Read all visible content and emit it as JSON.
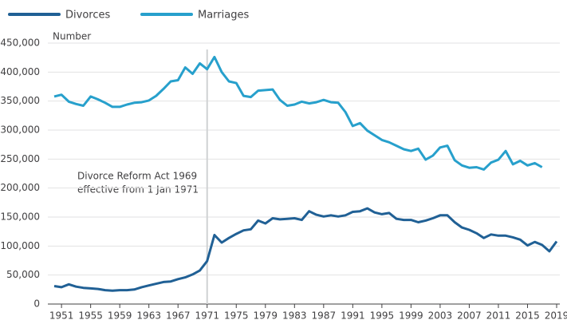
{
  "chart_data": {
    "type": "line",
    "y_label": "Number",
    "x": [
      1950,
      1951,
      1952,
      1953,
      1954,
      1955,
      1956,
      1957,
      1958,
      1959,
      1960,
      1961,
      1962,
      1963,
      1964,
      1965,
      1966,
      1967,
      1968,
      1969,
      1970,
      1971,
      1972,
      1973,
      1974,
      1975,
      1976,
      1977,
      1978,
      1979,
      1980,
      1981,
      1982,
      1983,
      1984,
      1985,
      1986,
      1987,
      1988,
      1989,
      1990,
      1991,
      1992,
      1993,
      1994,
      1995,
      1996,
      1997,
      1998,
      1999,
      2000,
      2001,
      2002,
      2003,
      2004,
      2005,
      2006,
      2007,
      2008,
      2009,
      2010,
      2011,
      2012,
      2013,
      2014,
      2015,
      2016,
      2017,
      2018,
      2019
    ],
    "series": [
      {
        "name": "Divorces",
        "color": "#206095",
        "values": [
          31000,
          29000,
          34000,
          30000,
          28000,
          27000,
          26000,
          24000,
          23000,
          24000,
          24000,
          25000,
          29000,
          32000,
          35000,
          38000,
          39000,
          43000,
          46000,
          51000,
          58000,
          74000,
          119000,
          106000,
          114000,
          121000,
          127000,
          129000,
          144000,
          139000,
          148000,
          146000,
          147000,
          148000,
          145000,
          160000,
          154000,
          151000,
          153000,
          151000,
          153000,
          159000,
          160000,
          165000,
          158000,
          155000,
          157000,
          147000,
          145000,
          145000,
          141000,
          144000,
          148000,
          153000,
          153000,
          141000,
          132000,
          128000,
          122000,
          114000,
          120000,
          118000,
          118000,
          115000,
          111000,
          101000,
          107000,
          102000,
          91000,
          108000
        ]
      },
      {
        "name": "Marriages",
        "color": "#27a0cc",
        "values": [
          358000,
          361000,
          349000,
          345000,
          342000,
          358000,
          353000,
          347000,
          340000,
          340000,
          344000,
          347000,
          348000,
          351000,
          359000,
          371000,
          384000,
          386000,
          408000,
          397000,
          415000,
          405000,
          426000,
          400000,
          384000,
          381000,
          359000,
          357000,
          368000,
          369000,
          370000,
          352000,
          342000,
          344000,
          349000,
          346000,
          348000,
          352000,
          348000,
          347000,
          331000,
          307000,
          312000,
          299000,
          291000,
          283000,
          279000,
          273000,
          267000,
          264000,
          268000,
          249000,
          256000,
          270000,
          273000,
          248000,
          239000,
          235000,
          236000,
          232000,
          244000,
          249000,
          264000,
          241000,
          247000,
          239000,
          243000,
          236000,
          null,
          null
        ]
      }
    ],
    "xlim": [
      1950,
      2019
    ],
    "xticks": [
      1951,
      1955,
      1959,
      1963,
      1967,
      1971,
      1975,
      1979,
      1983,
      1987,
      1991,
      1995,
      1999,
      2003,
      2007,
      2011,
      2015,
      2019
    ],
    "ylim": [
      0,
      450000
    ],
    "yticks": [
      0,
      {
        "value": 50000,
        "label": "50,000"
      },
      {
        "value": 100000,
        "label": "100,000"
      },
      {
        "value": 150000,
        "label": "150,000"
      },
      {
        "value": 200000,
        "label": "200,000"
      },
      {
        "value": 250000,
        "label": "250,000"
      },
      {
        "value": 300000,
        "label": "300,000"
      },
      {
        "value": 350000,
        "label": "350,000"
      },
      {
        "value": 400000,
        "label": "400,000"
      },
      {
        "value": 450000,
        "label": "450,000"
      }
    ],
    "grid": true,
    "annotation": {
      "x": 1971,
      "text": [
        "Divorce Reform Act 1969",
        "effective from 1 Jan 1971"
      ]
    }
  }
}
